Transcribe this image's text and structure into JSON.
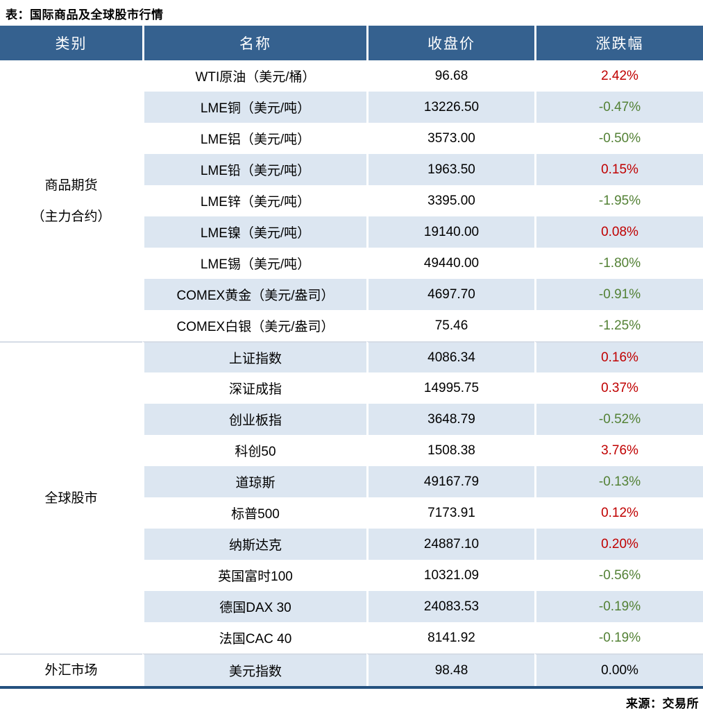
{
  "title": "表：国际商品及全球股市行情",
  "source": "来源：交易所",
  "colors": {
    "header_bg": "#35618F",
    "header_text": "#FFFFFF",
    "alt_row_bg": "#DCE6F1",
    "up_red": "#C00000",
    "down_green": "#538135",
    "flat_black": "#000000",
    "bottom_border": "#24517F",
    "section_divider": "#D5DCE6"
  },
  "table": {
    "headers": [
      "类别",
      "名称",
      "收盘价",
      "涨跌幅"
    ],
    "sections": [
      {
        "category": "商品期货（主力合约）",
        "category_lines": [
          "商品期货",
          "（主力合约）"
        ],
        "rows": [
          {
            "name": "WTI原油（美元/桶）",
            "close": "96.68",
            "change": "2.42%",
            "direction": "up"
          },
          {
            "name": "LME铜（美元/吨）",
            "close": "13226.50",
            "change": "-0.47%",
            "direction": "down"
          },
          {
            "name": "LME铝（美元/吨）",
            "close": "3573.00",
            "change": "-0.50%",
            "direction": "down"
          },
          {
            "name": "LME铅（美元/吨）",
            "close": "1963.50",
            "change": "0.15%",
            "direction": "up"
          },
          {
            "name": "LME锌（美元/吨）",
            "close": "3395.00",
            "change": "-1.95%",
            "direction": "down"
          },
          {
            "name": "LME镍（美元/吨）",
            "close": "19140.00",
            "change": "0.08%",
            "direction": "up"
          },
          {
            "name": "LME锡（美元/吨）",
            "close": "49440.00",
            "change": "-1.80%",
            "direction": "down"
          },
          {
            "name": "COMEX黄金（美元/盎司）",
            "close": "4697.70",
            "change": "-0.91%",
            "direction": "down"
          },
          {
            "name": "COMEX白银（美元/盎司）",
            "close": "75.46",
            "change": "-1.25%",
            "direction": "down"
          }
        ]
      },
      {
        "category": "全球股市",
        "category_lines": [
          "全球股市"
        ],
        "rows": [
          {
            "name": "上证指数",
            "close": "4086.34",
            "change": "0.16%",
            "direction": "up"
          },
          {
            "name": "深证成指",
            "close": "14995.75",
            "change": "0.37%",
            "direction": "up"
          },
          {
            "name": "创业板指",
            "close": "3648.79",
            "change": "-0.52%",
            "direction": "down"
          },
          {
            "name": "科创50",
            "close": "1508.38",
            "change": "3.76%",
            "direction": "up"
          },
          {
            "name": "道琼斯",
            "close": "49167.79",
            "change": "-0.13%",
            "direction": "down"
          },
          {
            "name": "标普500",
            "close": "7173.91",
            "change": "0.12%",
            "direction": "up"
          },
          {
            "name": "纳斯达克",
            "close": "24887.10",
            "change": "0.20%",
            "direction": "up"
          },
          {
            "name": "英国富时100",
            "close": "10321.09",
            "change": "-0.56%",
            "direction": "down"
          },
          {
            "name": "德国DAX 30",
            "close": "24083.53",
            "change": "-0.19%",
            "direction": "down"
          },
          {
            "name": "法国CAC 40",
            "close": "8141.92",
            "change": "-0.19%",
            "direction": "down"
          }
        ]
      },
      {
        "category": "外汇市场",
        "category_lines": [
          "外汇市场"
        ],
        "rows": [
          {
            "name": "美元指数",
            "close": "98.48",
            "change": "0.00%",
            "direction": "flat"
          }
        ]
      }
    ]
  }
}
